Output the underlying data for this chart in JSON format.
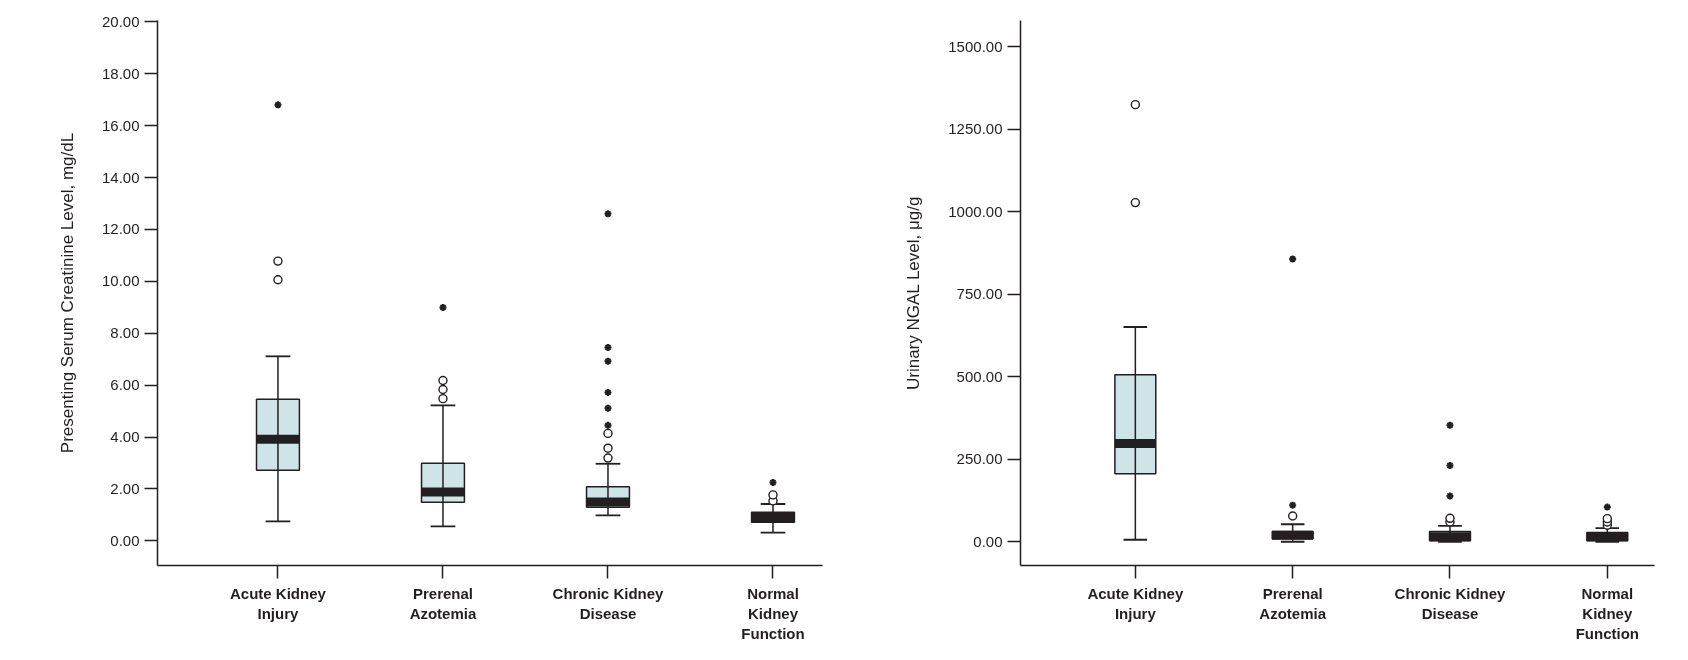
{
  "chart_data": [
    {
      "type": "box",
      "ylabel": "Presenting Serum Creatinine Level, mg/dL",
      "categories": [
        "Acute Kidney\nInjury",
        "Prerenal\nAzotemia",
        "Chronic Kidney\nDisease",
        "Normal\nKidney\nFunction"
      ],
      "series": [
        {
          "color": "#cfe4e6",
          "boxes": [
            {
              "low": 0.75,
              "q1": 2.72,
              "median": 3.91,
              "q3": 5.46,
              "high": 7.11,
              "outliers": [
                10.06,
                10.78,
                16.8
              ]
            },
            {
              "low": 0.56,
              "q1": 1.49,
              "median": 1.88,
              "q3": 2.99,
              "high": 5.22,
              "outliers": [
                5.48,
                5.83,
                6.18,
                8.99
              ]
            },
            {
              "low": 0.98,
              "q1": 1.29,
              "median": 1.5,
              "q3": 2.08,
              "high": 2.97,
              "outliers": [
                3.19,
                3.57,
                4.14,
                4.45,
                5.11,
                5.72,
                6.92,
                7.45,
                12.6
              ]
            },
            {
              "low": 0.32,
              "q1": 0.72,
              "median": 0.9,
              "q3": 1.1,
              "high": 1.42,
              "outliers": [
                1.54,
                1.77,
                2.25
              ]
            }
          ]
        }
      ],
      "ylim": [
        -0.95,
        20.05
      ],
      "yticks": [
        {
          "value": 0,
          "label": "0.00"
        },
        {
          "value": 2,
          "label": "2.00"
        },
        {
          "value": 4,
          "label": "4.00"
        },
        {
          "value": 6,
          "label": "6.00"
        },
        {
          "value": 8,
          "label": "8.00"
        },
        {
          "value": 10,
          "label": "10.00"
        },
        {
          "value": 12,
          "label": "12.00"
        },
        {
          "value": 14,
          "label": "14.00"
        },
        {
          "value": 16,
          "label": "16.00"
        },
        {
          "value": 18,
          "label": "18.00"
        },
        {
          "value": 20,
          "label": "20.00"
        }
      ]
    },
    {
      "type": "box",
      "ylabel": "Urinary NGAL Level, μg/g",
      "categories": [
        "Acute Kidney\nInjury",
        "Prerenal\nAzotemia",
        "Chronic Kidney\nDisease",
        "Normal\nKidney\nFunction"
      ],
      "series": [
        {
          "color": "#cfe4e6",
          "boxes": [
            {
              "low": 6,
              "q1": 206,
              "median": 298,
              "q3": 506,
              "high": 651,
              "outliers": [
                1028,
                1325
              ]
            },
            {
              "low": 0,
              "q1": 9,
              "median": 20,
              "q3": 31,
              "high": 53,
              "outliers": [
                78,
                111,
                857
              ]
            },
            {
              "low": 0,
              "q1": 3,
              "median": 15,
              "q3": 31,
              "high": 48,
              "outliers": [
                60,
                71,
                139,
                231,
                353
              ]
            },
            {
              "low": 0,
              "q1": 3,
              "median": 15,
              "q3": 28,
              "high": 41,
              "outliers": [
                50,
                60,
                70,
                105
              ]
            }
          ]
        }
      ],
      "ylim": [
        -72,
        1580
      ],
      "yticks": [
        {
          "value": 0,
          "label": "0.00"
        },
        {
          "value": 250,
          "label": "250.00"
        },
        {
          "value": 500,
          "label": "500.00"
        },
        {
          "value": 750,
          "label": "750.00"
        },
        {
          "value": 1000,
          "label": "1000.00"
        },
        {
          "value": 1250,
          "label": "1250.00"
        },
        {
          "value": 1500,
          "label": "1500.00"
        }
      ]
    }
  ]
}
